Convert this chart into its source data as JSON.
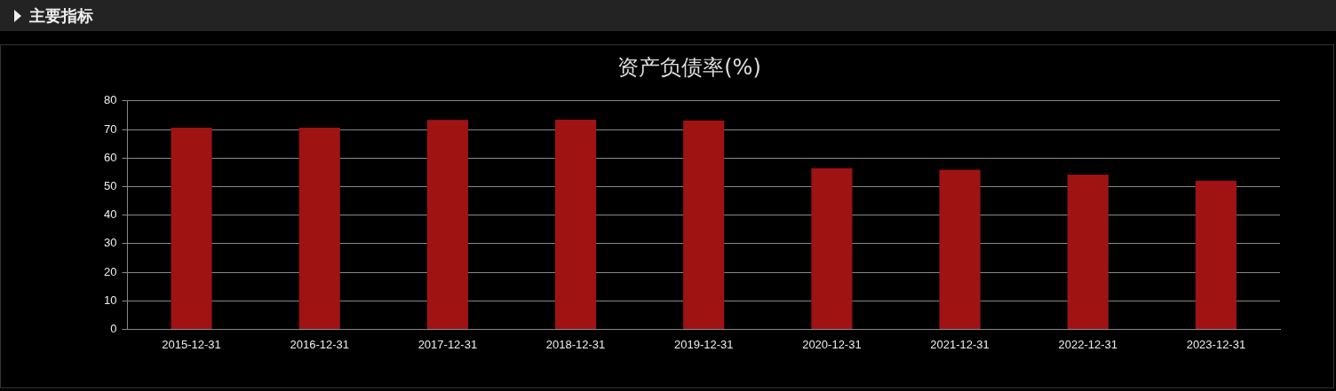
{
  "chart_data": {
    "type": "bar",
    "title": "资产负债率(%)",
    "annotations": [
      "主要指标"
    ],
    "categories": [
      "2015-12-31",
      "2016-12-31",
      "2017-12-31",
      "2018-12-31",
      "2019-12-31",
      "2020-12-31",
      "2021-12-31",
      "2022-12-31",
      "2023-12-31"
    ],
    "values": [
      70.6,
      70.6,
      73.3,
      73.4,
      73.1,
      56.4,
      55.9,
      54.2,
      52.1
    ],
    "color": "#a01313",
    "ylim": [
      0,
      80
    ],
    "yticks": [
      0,
      10,
      20,
      30,
      40,
      50,
      60,
      70,
      80
    ],
    "grid": "y",
    "legend": false
  }
}
